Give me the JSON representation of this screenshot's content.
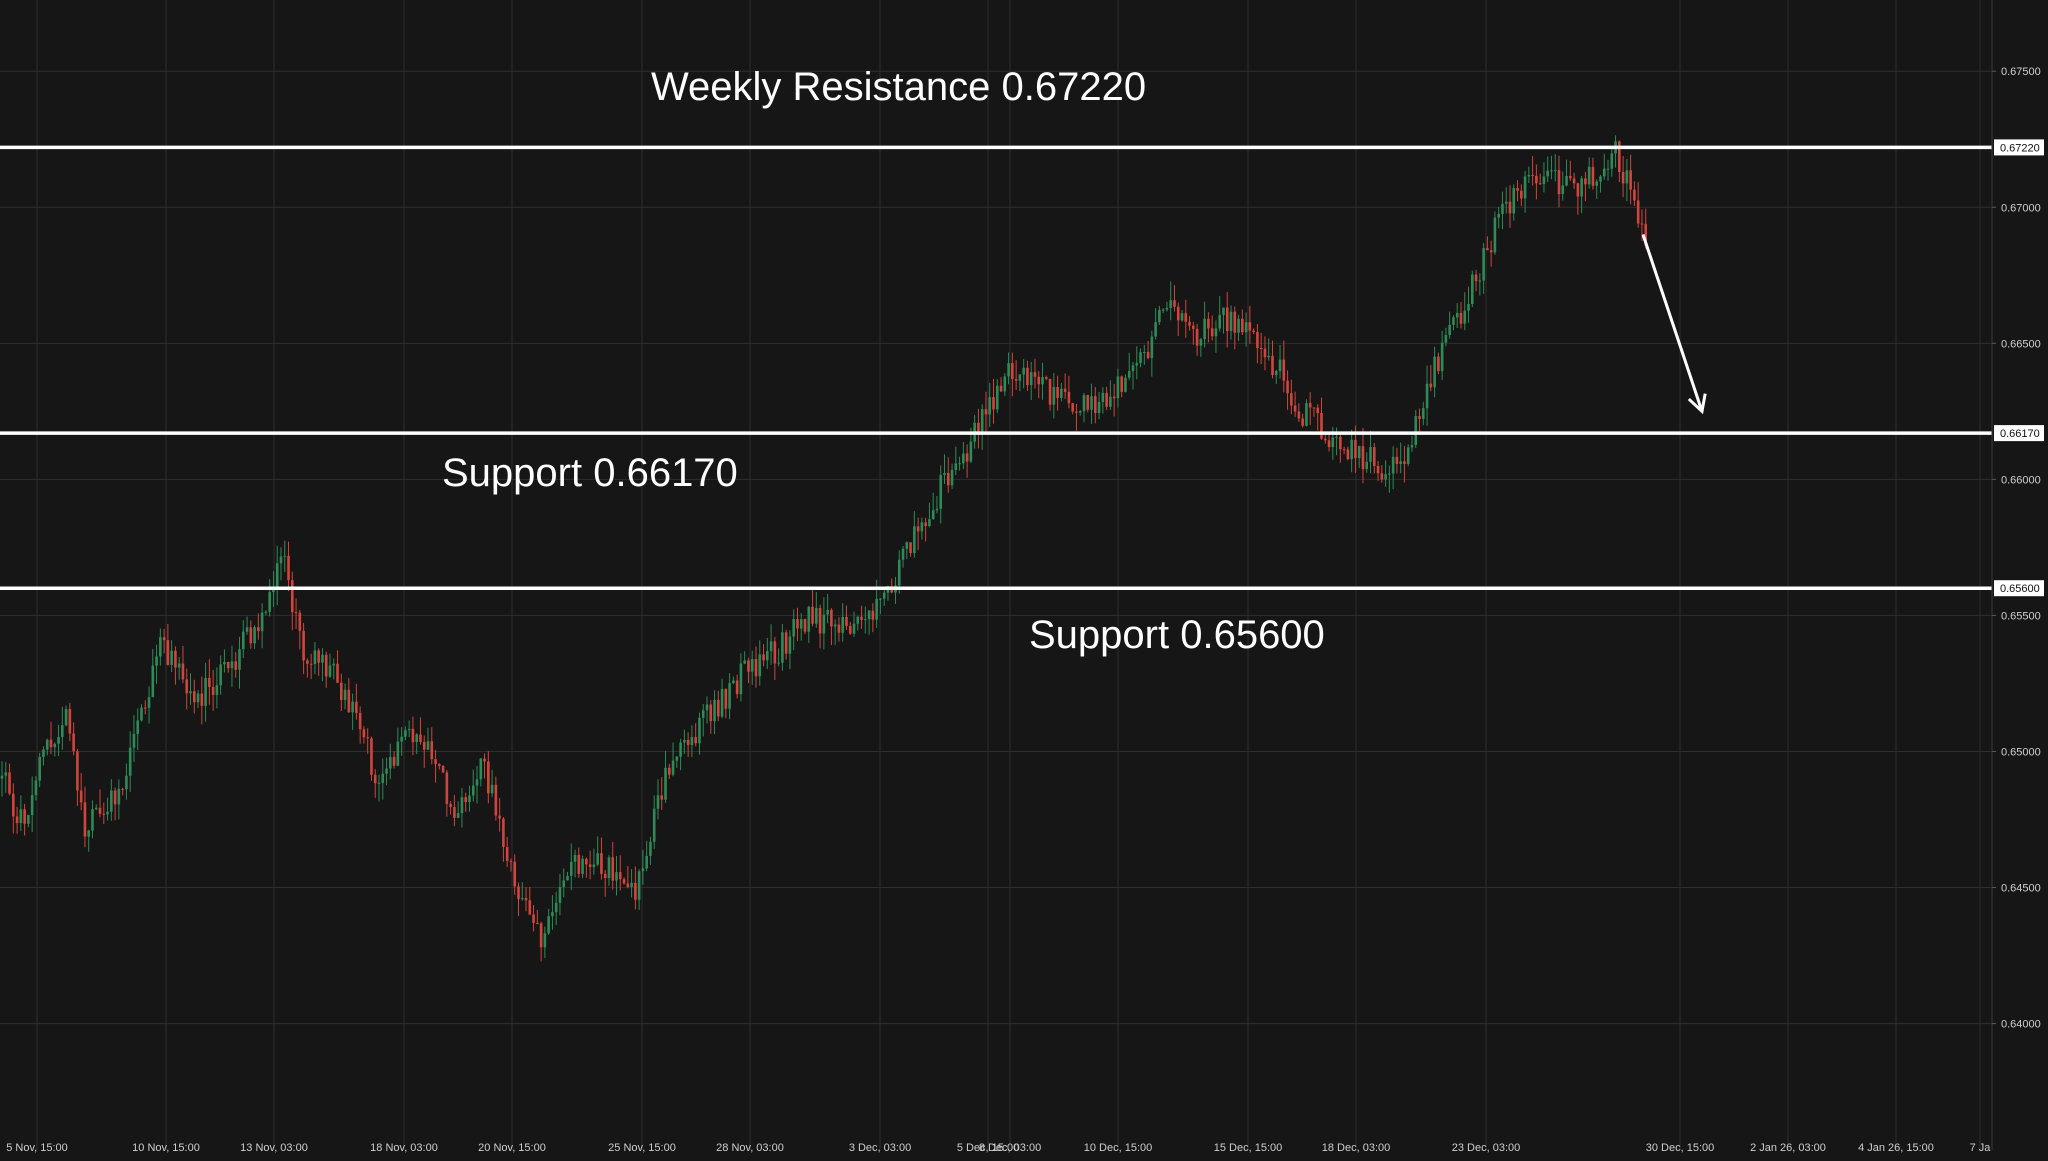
{
  "chart_data": {
    "type": "candlestick",
    "title": "",
    "xlabel": "",
    "ylabel": "",
    "grid": true,
    "colors": {
      "background": "#161616",
      "grid": "#2e2e2e",
      "up": "#2e8b57",
      "down": "#d2453c",
      "line": "#ffffff"
    },
    "y_axis": {
      "ylim": [
        0.638,
        0.676
      ],
      "ticks": [
        {
          "value": 0.675,
          "label": "0.67500"
        },
        {
          "value": 0.67,
          "label": "0.67000"
        },
        {
          "value": 0.665,
          "label": "0.66500"
        },
        {
          "value": 0.66,
          "label": "0.66000"
        },
        {
          "value": 0.655,
          "label": "0.65500"
        },
        {
          "value": 0.65,
          "label": "0.65000"
        },
        {
          "value": 0.645,
          "label": "0.64500"
        },
        {
          "value": 0.64,
          "label": "0.64000"
        }
      ]
    },
    "x_axis": {
      "ticks": [
        "5 Nov, 15:00",
        "10 Nov, 15:00",
        "13 Nov, 03:00",
        "18 Nov, 03:00",
        "20 Nov, 15:00",
        "25 Nov, 15:00",
        "28 Nov, 03:00",
        "3 Dec, 03:00",
        "5 Dec, 15:00",
        "8 Dec, 03:00",
        "10 Dec, 15:00",
        "15 Dec, 15:00",
        "18 Dec, 03:00",
        "23 Dec, 03:00",
        "30 Dec, 15:00",
        "2 Jan 26, 03:00",
        "4 Jan 26, 15:00",
        "7 Ja"
      ]
    },
    "price_path": [
      {
        "i": 0,
        "v": 0.649
      },
      {
        "i": 6,
        "v": 0.6472
      },
      {
        "i": 12,
        "v": 0.6505
      },
      {
        "i": 18,
        "v": 0.6512
      },
      {
        "i": 22,
        "v": 0.647
      },
      {
        "i": 32,
        "v": 0.649
      },
      {
        "i": 42,
        "v": 0.6538
      },
      {
        "i": 52,
        "v": 0.652
      },
      {
        "i": 62,
        "v": 0.6535
      },
      {
        "i": 70,
        "v": 0.655
      },
      {
        "i": 74,
        "v": 0.6575
      },
      {
        "i": 80,
        "v": 0.6538
      },
      {
        "i": 88,
        "v": 0.653
      },
      {
        "i": 100,
        "v": 0.649
      },
      {
        "i": 110,
        "v": 0.651
      },
      {
        "i": 120,
        "v": 0.648
      },
      {
        "i": 128,
        "v": 0.6495
      },
      {
        "i": 134,
        "v": 0.646
      },
      {
        "i": 143,
        "v": 0.6432
      },
      {
        "i": 152,
        "v": 0.646
      },
      {
        "i": 162,
        "v": 0.6458
      },
      {
        "i": 168,
        "v": 0.645
      },
      {
        "i": 176,
        "v": 0.649
      },
      {
        "i": 186,
        "v": 0.651
      },
      {
        "i": 196,
        "v": 0.6528
      },
      {
        "i": 206,
        "v": 0.6538
      },
      {
        "i": 214,
        "v": 0.655
      },
      {
        "i": 222,
        "v": 0.6545
      },
      {
        "i": 234,
        "v": 0.6555
      },
      {
        "i": 246,
        "v": 0.659
      },
      {
        "i": 256,
        "v": 0.6612
      },
      {
        "i": 262,
        "v": 0.6625
      },
      {
        "i": 268,
        "v": 0.664
      },
      {
        "i": 280,
        "v": 0.663
      },
      {
        "i": 290,
        "v": 0.6628
      },
      {
        "i": 300,
        "v": 0.664
      },
      {
        "i": 310,
        "v": 0.6665
      },
      {
        "i": 316,
        "v": 0.665
      },
      {
        "i": 324,
        "v": 0.666
      },
      {
        "i": 334,
        "v": 0.665
      },
      {
        "i": 345,
        "v": 0.6625
      },
      {
        "i": 357,
        "v": 0.661
      },
      {
        "i": 366,
        "v": 0.6605
      },
      {
        "i": 372,
        "v": 0.6608
      },
      {
        "i": 380,
        "v": 0.664
      },
      {
        "i": 390,
        "v": 0.667
      },
      {
        "i": 398,
        "v": 0.6698
      },
      {
        "i": 406,
        "v": 0.6712
      },
      {
        "i": 418,
        "v": 0.6705
      },
      {
        "i": 428,
        "v": 0.6722
      },
      {
        "i": 436,
        "v": 0.669
      }
    ],
    "horizontal_levels": [
      {
        "value": 0.6722,
        "label": "0.67220",
        "annotation": "Weekly Resistance 0.67220"
      },
      {
        "value": 0.6617,
        "label": "0.66170",
        "annotation": "Support 0.66170"
      },
      {
        "value": 0.656,
        "label": "0.65600",
        "annotation": "Support 0.65600"
      }
    ],
    "projection_arrow": {
      "from": 0.669,
      "to": 0.6625,
      "direction": "down"
    }
  }
}
